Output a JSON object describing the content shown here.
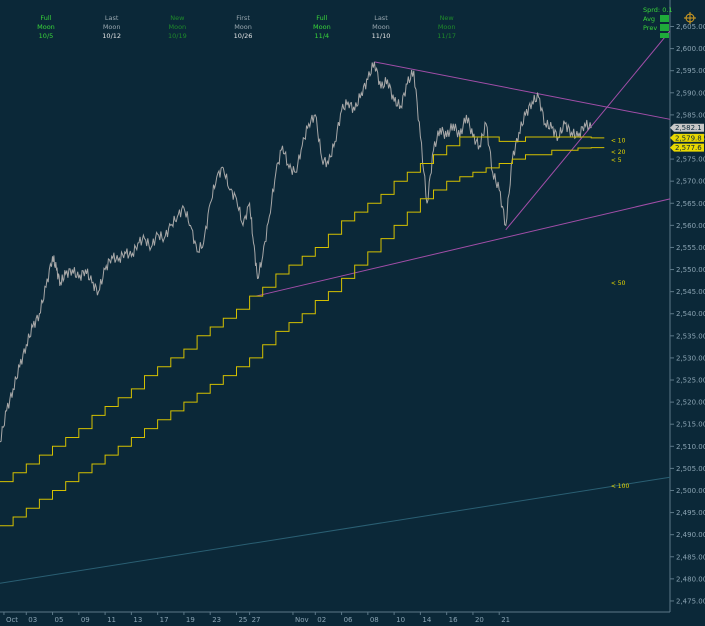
{
  "chart_data": {
    "type": "line",
    "title": "",
    "xlabel": "",
    "ylabel": "",
    "ylim": [
      2472.5,
      2611
    ],
    "y_ticks": [
      2475,
      2480,
      2485,
      2490,
      2495,
      2500,
      2505,
      2510,
      2515,
      2520,
      2525,
      2530,
      2535,
      2540,
      2545,
      2550,
      2555,
      2560,
      2565,
      2570,
      2575,
      2580,
      2585,
      2590,
      2595,
      2600,
      2605
    ],
    "y_tick_labels": [
      "2,475.00",
      "2,480.00",
      "2,485.00",
      "2,490.00",
      "2,495.00",
      "2,500.00",
      "2,505.00",
      "2,510.00",
      "2,515.00",
      "2,520.00",
      "2,525.00",
      "2,530.00",
      "2,535.00",
      "2,540.00",
      "2,545.00",
      "2,550.00",
      "2,555.00",
      "2,560.00",
      "2,565.00",
      "2,570.00",
      "2,575.00",
      "2,580.00",
      "2,585.00",
      "2,590.00",
      "2,595.00",
      "2,600.00",
      "2,605.00"
    ],
    "x_tick_labels": [
      {
        "label": "Oct",
        "day": 0.3
      },
      {
        "label": "03",
        "day": 2
      },
      {
        "label": "05",
        "day": 4
      },
      {
        "label": "09",
        "day": 6
      },
      {
        "label": "11",
        "day": 8
      },
      {
        "label": "13",
        "day": 10
      },
      {
        "label": "17",
        "day": 12
      },
      {
        "label": "19",
        "day": 14
      },
      {
        "label": "23",
        "day": 16
      },
      {
        "label": "25",
        "day": 18
      },
      {
        "label": "27",
        "day": 19
      },
      {
        "label": "Nov",
        "day": 22.3
      },
      {
        "label": "02",
        "day": 24
      },
      {
        "label": "06",
        "day": 26
      },
      {
        "label": "08",
        "day": 28
      },
      {
        "label": "10",
        "day": 30
      },
      {
        "label": "14",
        "day": 32
      },
      {
        "label": "16",
        "day": 34
      },
      {
        "label": "20",
        "day": 36
      },
      {
        "label": "21",
        "day": 38
      }
    ],
    "moon_phases": [
      {
        "line1": "Full",
        "line2": "Moon",
        "date": "10/5",
        "day": 3.5,
        "color": "#39d639",
        "date_color": "#39d639"
      },
      {
        "line1": "Last",
        "line2": "Moon",
        "date": "10/12",
        "day": 8.5,
        "color": "#9aa8b0",
        "date_color": "#e6e6e6"
      },
      {
        "line1": "New",
        "line2": "Moon",
        "date": "10/19",
        "day": 13.5,
        "color": "#1f8a2a",
        "date_color": "#1f8a2a"
      },
      {
        "line1": "First",
        "line2": "Moon",
        "date": "10/26",
        "day": 18.5,
        "color": "#9aa8b0",
        "date_color": "#e6e6e6"
      },
      {
        "line1": "Full",
        "line2": "Moon",
        "date": "11/4",
        "day": 24.5,
        "color": "#39d639",
        "date_color": "#39d639"
      },
      {
        "line1": "Last",
        "line2": "Moon",
        "date": "11/10",
        "day": 29,
        "color": "#9aa8b0",
        "date_color": "#e6e6e6"
      },
      {
        "line1": "New",
        "line2": "Moon",
        "date": "11/17",
        "day": 34,
        "color": "#1f8a2a",
        "date_color": "#1f8a2a"
      }
    ],
    "info_box": {
      "sprd": "Sprd: 0.1",
      "avg": "Avg",
      "prev": "Prev"
    },
    "series": [
      {
        "name": "",
        "color": "#a8a8a8",
        "points": [
          [
            0,
            2511
          ],
          [
            0.5,
            2518
          ],
          [
            1,
            2523
          ],
          [
            1.5,
            2528
          ],
          [
            2,
            2533
          ],
          [
            2.5,
            2537
          ],
          [
            3,
            2540
          ],
          [
            3.5,
            2546
          ],
          [
            4,
            2553
          ],
          [
            4.3,
            2550
          ],
          [
            4.6,
            2547
          ],
          [
            5,
            2549
          ],
          [
            5.5,
            2550
          ],
          [
            6,
            2548
          ],
          [
            6.5,
            2550
          ],
          [
            7,
            2547
          ],
          [
            7.5,
            2545
          ],
          [
            8,
            2550
          ],
          [
            8.5,
            2553
          ],
          [
            9,
            2552
          ],
          [
            9.5,
            2554
          ],
          [
            10,
            2553
          ],
          [
            10.5,
            2556
          ],
          [
            11,
            2557
          ],
          [
            11.5,
            2555
          ],
          [
            12,
            2558
          ],
          [
            12.5,
            2557
          ],
          [
            13,
            2560
          ],
          [
            13.5,
            2562
          ],
          [
            14,
            2564
          ],
          [
            14.5,
            2560
          ],
          [
            15,
            2554
          ],
          [
            15.5,
            2556
          ],
          [
            16,
            2565
          ],
          [
            16.5,
            2571
          ],
          [
            17,
            2573
          ],
          [
            17.5,
            2568
          ],
          [
            18,
            2566
          ],
          [
            18.5,
            2560
          ],
          [
            19,
            2565
          ],
          [
            19.3,
            2556
          ],
          [
            19.6,
            2548
          ],
          [
            20,
            2553
          ],
          [
            20.5,
            2562
          ],
          [
            21,
            2572
          ],
          [
            21.5,
            2578
          ],
          [
            22,
            2573
          ],
          [
            22.5,
            2572
          ],
          [
            23,
            2578
          ],
          [
            23.5,
            2583
          ],
          [
            24,
            2585
          ],
          [
            24.5,
            2575
          ],
          [
            25,
            2574
          ],
          [
            25.5,
            2579
          ],
          [
            26,
            2586
          ],
          [
            26.5,
            2588
          ],
          [
            27,
            2586
          ],
          [
            27.5,
            2590
          ],
          [
            28,
            2593
          ],
          [
            28.5,
            2597
          ],
          [
            29,
            2591
          ],
          [
            29.5,
            2593
          ],
          [
            30,
            2588
          ],
          [
            30.5,
            2587
          ],
          [
            31,
            2592
          ],
          [
            31.5,
            2595
          ],
          [
            32,
            2580
          ],
          [
            32.5,
            2565
          ],
          [
            33,
            2577
          ],
          [
            33.5,
            2582
          ],
          [
            34,
            2580
          ],
          [
            34.5,
            2583
          ],
          [
            35,
            2580
          ],
          [
            35.5,
            2585
          ],
          [
            36,
            2580
          ],
          [
            36.5,
            2578
          ],
          [
            37,
            2583
          ],
          [
            37.5,
            2572
          ],
          [
            38,
            2568
          ],
          [
            38.5,
            2560
          ],
          [
            39,
            2575
          ],
          [
            39.5,
            2581
          ],
          [
            40,
            2585
          ],
          [
            40.5,
            2588
          ],
          [
            41,
            2589
          ],
          [
            41.5,
            2583
          ],
          [
            42,
            2582
          ],
          [
            42.5,
            2580
          ],
          [
            43,
            2583
          ],
          [
            43.5,
            2581
          ],
          [
            44,
            2580
          ],
          [
            44.5,
            2583
          ],
          [
            45,
            2582
          ]
        ]
      },
      {
        "name": "10",
        "color": "#d4c000",
        "steps": [
          [
            0,
            2502
          ],
          [
            1,
            2504
          ],
          [
            2,
            2506
          ],
          [
            3,
            2508
          ],
          [
            4,
            2510
          ],
          [
            5,
            2512
          ],
          [
            6,
            2514
          ],
          [
            7,
            2517
          ],
          [
            8,
            2519
          ],
          [
            9,
            2521
          ],
          [
            10,
            2523
          ],
          [
            11,
            2526
          ],
          [
            12,
            2528
          ],
          [
            13,
            2530
          ],
          [
            14,
            2532
          ],
          [
            15,
            2535
          ],
          [
            16,
            2537
          ],
          [
            17,
            2539
          ],
          [
            18,
            2541
          ],
          [
            19,
            2544
          ],
          [
            20,
            2546
          ],
          [
            21,
            2549
          ],
          [
            22,
            2551
          ],
          [
            23,
            2553
          ],
          [
            24,
            2555
          ],
          [
            25,
            2558
          ],
          [
            26,
            2561
          ],
          [
            27,
            2563
          ],
          [
            28,
            2565
          ],
          [
            29,
            2567
          ],
          [
            30,
            2570
          ],
          [
            31,
            2572
          ],
          [
            32,
            2574
          ],
          [
            33,
            2576
          ],
          [
            34,
            2578
          ],
          [
            35,
            2580
          ],
          [
            36,
            2580
          ],
          [
            37,
            2580
          ],
          [
            38,
            2579
          ],
          [
            39,
            2579
          ],
          [
            40,
            2580
          ],
          [
            41,
            2580
          ],
          [
            42,
            2580
          ],
          [
            43,
            2580
          ],
          [
            44,
            2580
          ],
          [
            45,
            2579.8
          ]
        ]
      },
      {
        "name": "20",
        "color": "#d4c000",
        "steps": [
          [
            0,
            2492
          ],
          [
            1,
            2494
          ],
          [
            2,
            2496
          ],
          [
            3,
            2498
          ],
          [
            4,
            2500
          ],
          [
            5,
            2502
          ],
          [
            6,
            2504
          ],
          [
            7,
            2506
          ],
          [
            8,
            2508
          ],
          [
            9,
            2510
          ],
          [
            10,
            2512
          ],
          [
            11,
            2514
          ],
          [
            12,
            2516
          ],
          [
            13,
            2518
          ],
          [
            14,
            2520
          ],
          [
            15,
            2522
          ],
          [
            16,
            2524
          ],
          [
            17,
            2526
          ],
          [
            18,
            2528
          ],
          [
            19,
            2530
          ],
          [
            20,
            2533
          ],
          [
            21,
            2536
          ],
          [
            22,
            2538
          ],
          [
            23,
            2540
          ],
          [
            24,
            2543
          ],
          [
            25,
            2545
          ],
          [
            26,
            2548
          ],
          [
            27,
            2551
          ],
          [
            28,
            2554
          ],
          [
            29,
            2557
          ],
          [
            30,
            2560
          ],
          [
            31,
            2563
          ],
          [
            32,
            2566
          ],
          [
            33,
            2568
          ],
          [
            34,
            2570
          ],
          [
            35,
            2571
          ],
          [
            36,
            2572
          ],
          [
            37,
            2573
          ],
          [
            38,
            2574
          ],
          [
            39,
            2575
          ],
          [
            40,
            2576
          ],
          [
            41,
            2576
          ],
          [
            42,
            2577
          ],
          [
            43,
            2577
          ],
          [
            44,
            2577.5
          ],
          [
            45,
            2577.6
          ]
        ]
      }
    ],
    "trendlines": [
      {
        "color": "#a24ea8",
        "from": [
          28.5,
          2597
        ],
        "to": [
          51,
          2584
        ]
      },
      {
        "color": "#a24ea8",
        "from": [
          19.5,
          2544
        ],
        "to": [
          51,
          2566
        ]
      },
      {
        "color": "#a24ea8",
        "from": [
          38.5,
          2559
        ],
        "to": [
          51,
          2604
        ]
      },
      {
        "color": "#2a5f73",
        "from": [
          0,
          2479
        ],
        "to": [
          51,
          2503
        ]
      }
    ],
    "annotations": [
      {
        "text": "< 10",
        "day": 46.5,
        "value": 2579.2
      },
      {
        "text": "< 20",
        "day": 46.5,
        "value": 2576.6
      },
      {
        "text": "< 5",
        "day": 46.5,
        "value": 2574.8
      },
      {
        "text": "< 50",
        "day": 46.5,
        "value": 2547
      },
      {
        "text": "< 100",
        "day": 46.5,
        "value": 2501
      }
    ],
    "price_tags": [
      {
        "text": "2,582.1",
        "value": 2582.1,
        "bg": "#c8c8c8",
        "fg": "#0b2838"
      },
      {
        "text": "2,579.8",
        "value": 2579.8,
        "bg": "#e8d800",
        "fg": "#0b2838"
      },
      {
        "text": "2,577.6",
        "value": 2577.6,
        "bg": "#e8d800",
        "fg": "#0b2838"
      }
    ]
  }
}
